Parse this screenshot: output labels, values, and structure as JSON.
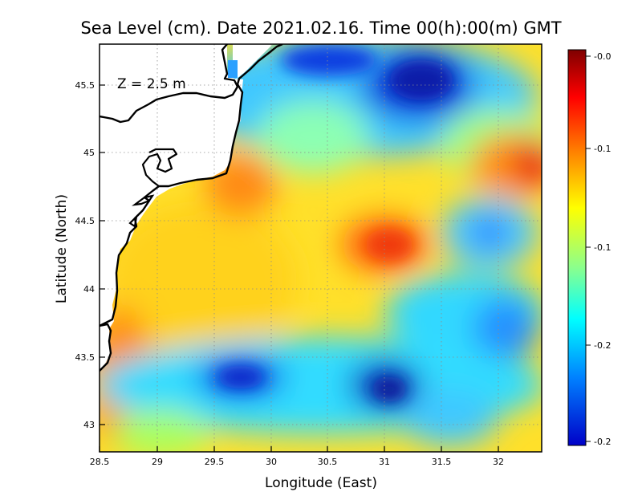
{
  "title": "Sea Level (cm). Date 2021.02.16. Time 00(h):00(m) GMT",
  "depth_label": "Z = 2.5 m",
  "x_axis": {
    "label": "Longitude (East)",
    "ticks": [
      "28.5",
      "29",
      "29.5",
      "30",
      "30.5",
      "31",
      "31.5",
      "32"
    ],
    "tick_values": [
      28.5,
      29,
      29.5,
      30,
      30.5,
      31,
      31.5,
      32
    ],
    "range": [
      28.5,
      32.4
    ]
  },
  "y_axis": {
    "label": "Latitude (North)",
    "ticks": [
      "45.5",
      "45",
      "44.5",
      "44",
      "43.5",
      "43"
    ],
    "tick_values": [
      45.5,
      45,
      44.5,
      44,
      43.5,
      43
    ],
    "range": [
      42.8,
      45.8
    ]
  },
  "colorbar": {
    "labels": [
      "-0.0",
      "-0.1",
      "-0.1",
      "-0.2",
      "-0.2"
    ],
    "colors": [
      "#7f0000",
      "#ff0000",
      "#ff8c00",
      "#ffff00",
      "#8cff8c",
      "#00ffff",
      "#0080ff",
      "#0000c8"
    ]
  },
  "grid": "dotted",
  "colors": {
    "land": "#ffffff",
    "coastline": "#000000",
    "background_field": "#ffeb3b"
  }
}
